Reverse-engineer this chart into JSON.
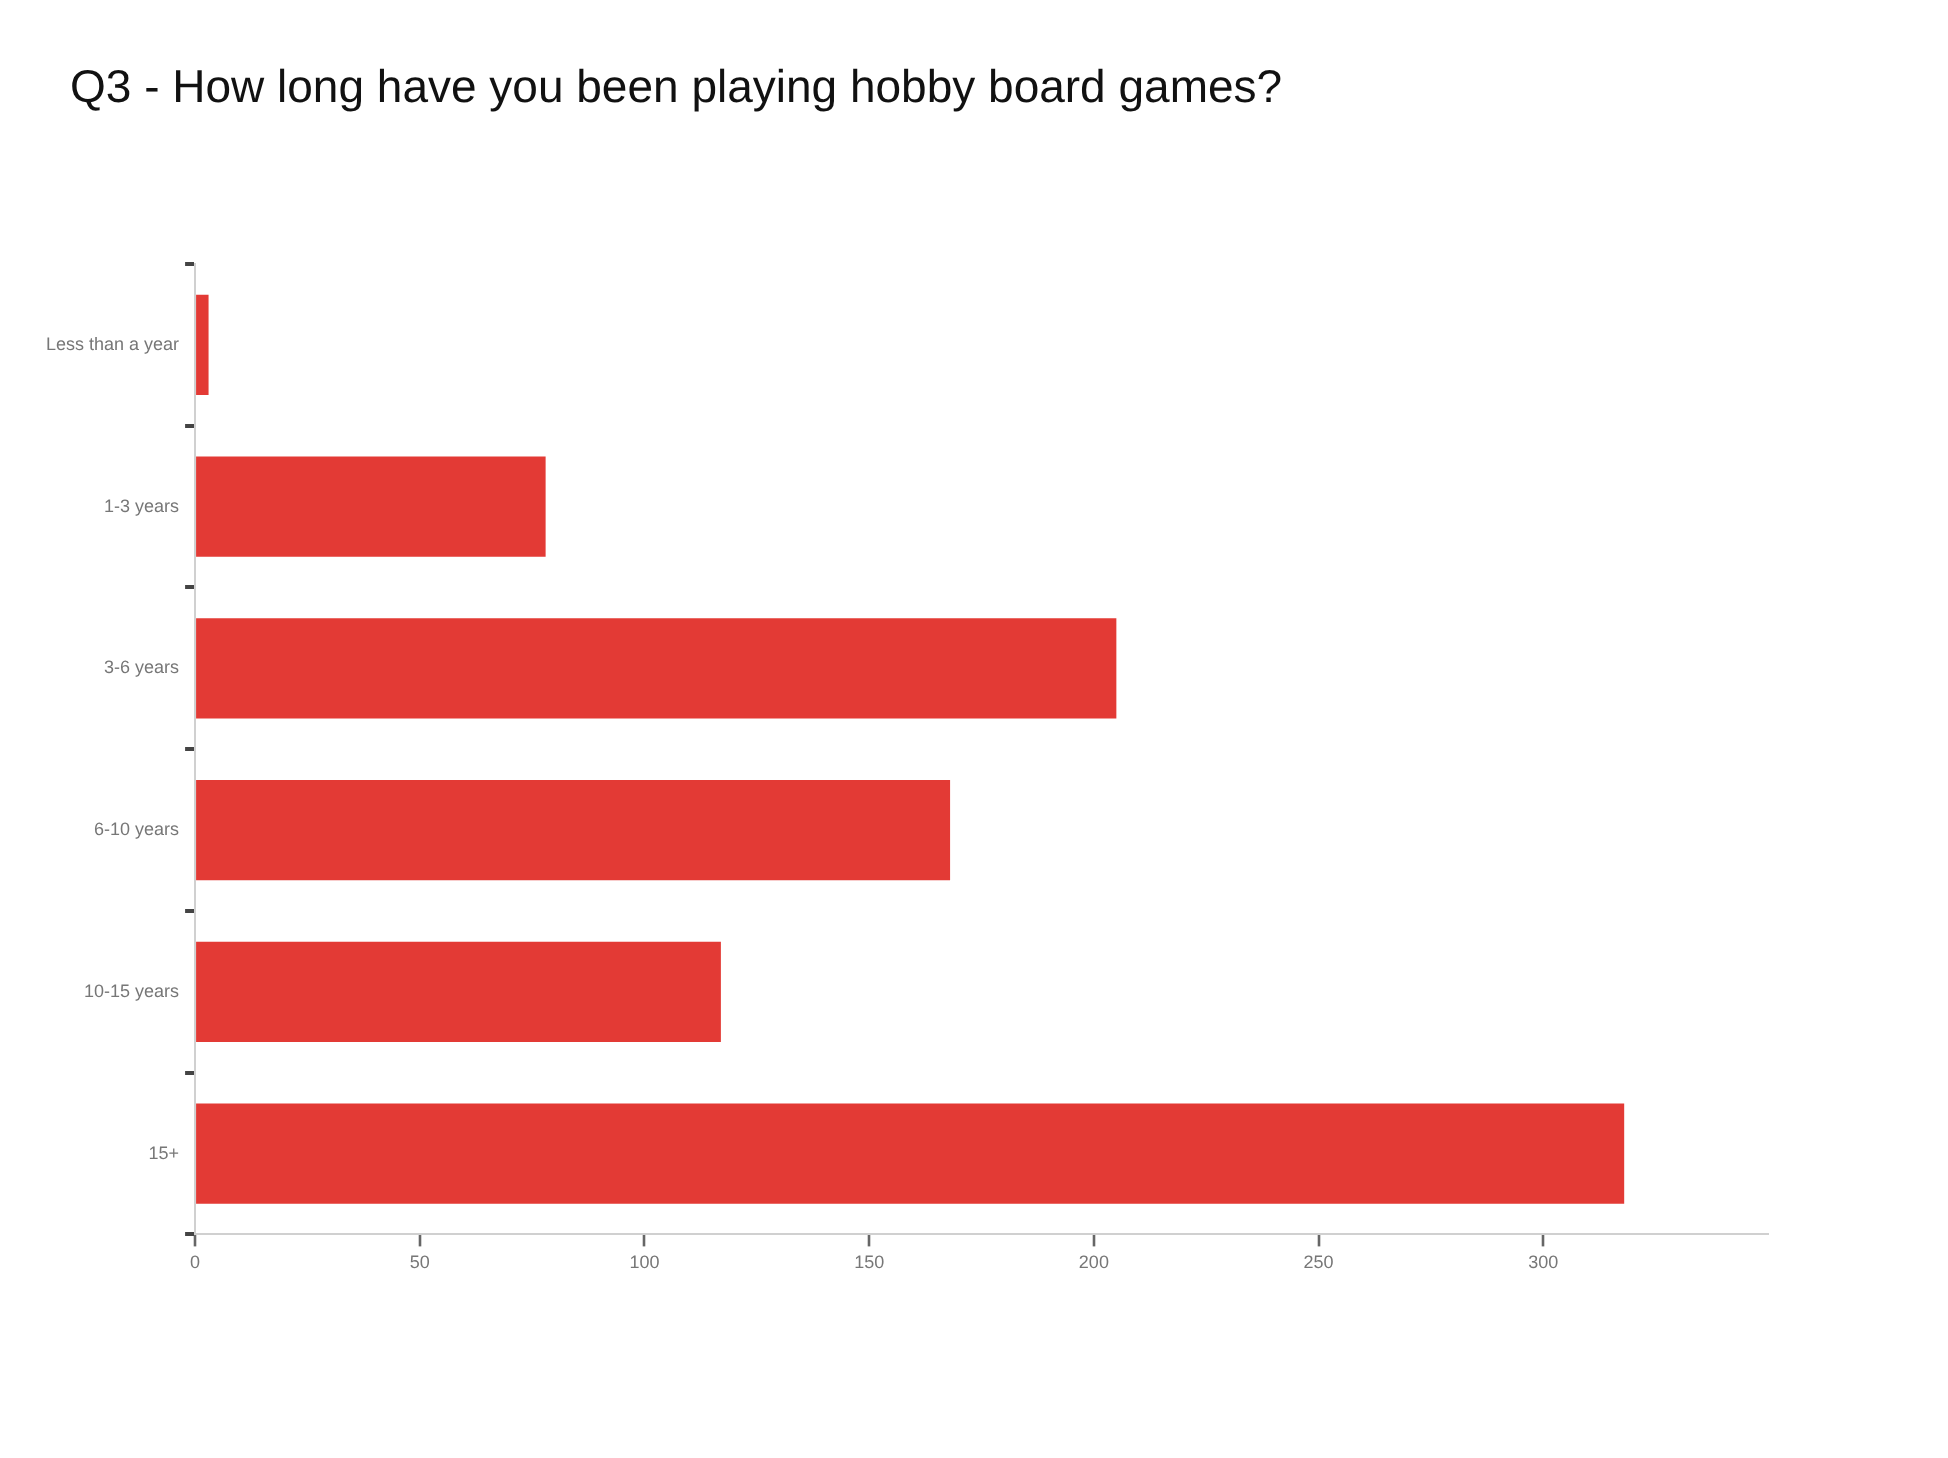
{
  "chart_data": {
    "type": "bar",
    "orientation": "horizontal",
    "title": "Q3 - How long have you been playing hobby board games?",
    "categories": [
      "Less than a year",
      "1-3 years",
      "3-6 years",
      "6-10 years",
      "10-15 years",
      "15+"
    ],
    "values": [
      3,
      78,
      205,
      168,
      117,
      318
    ],
    "color": "#e33a35",
    "xlim": [
      0,
      350
    ],
    "xticks": [
      0,
      50,
      100,
      150,
      200,
      250,
      300
    ],
    "grid": false,
    "legend": false
  }
}
